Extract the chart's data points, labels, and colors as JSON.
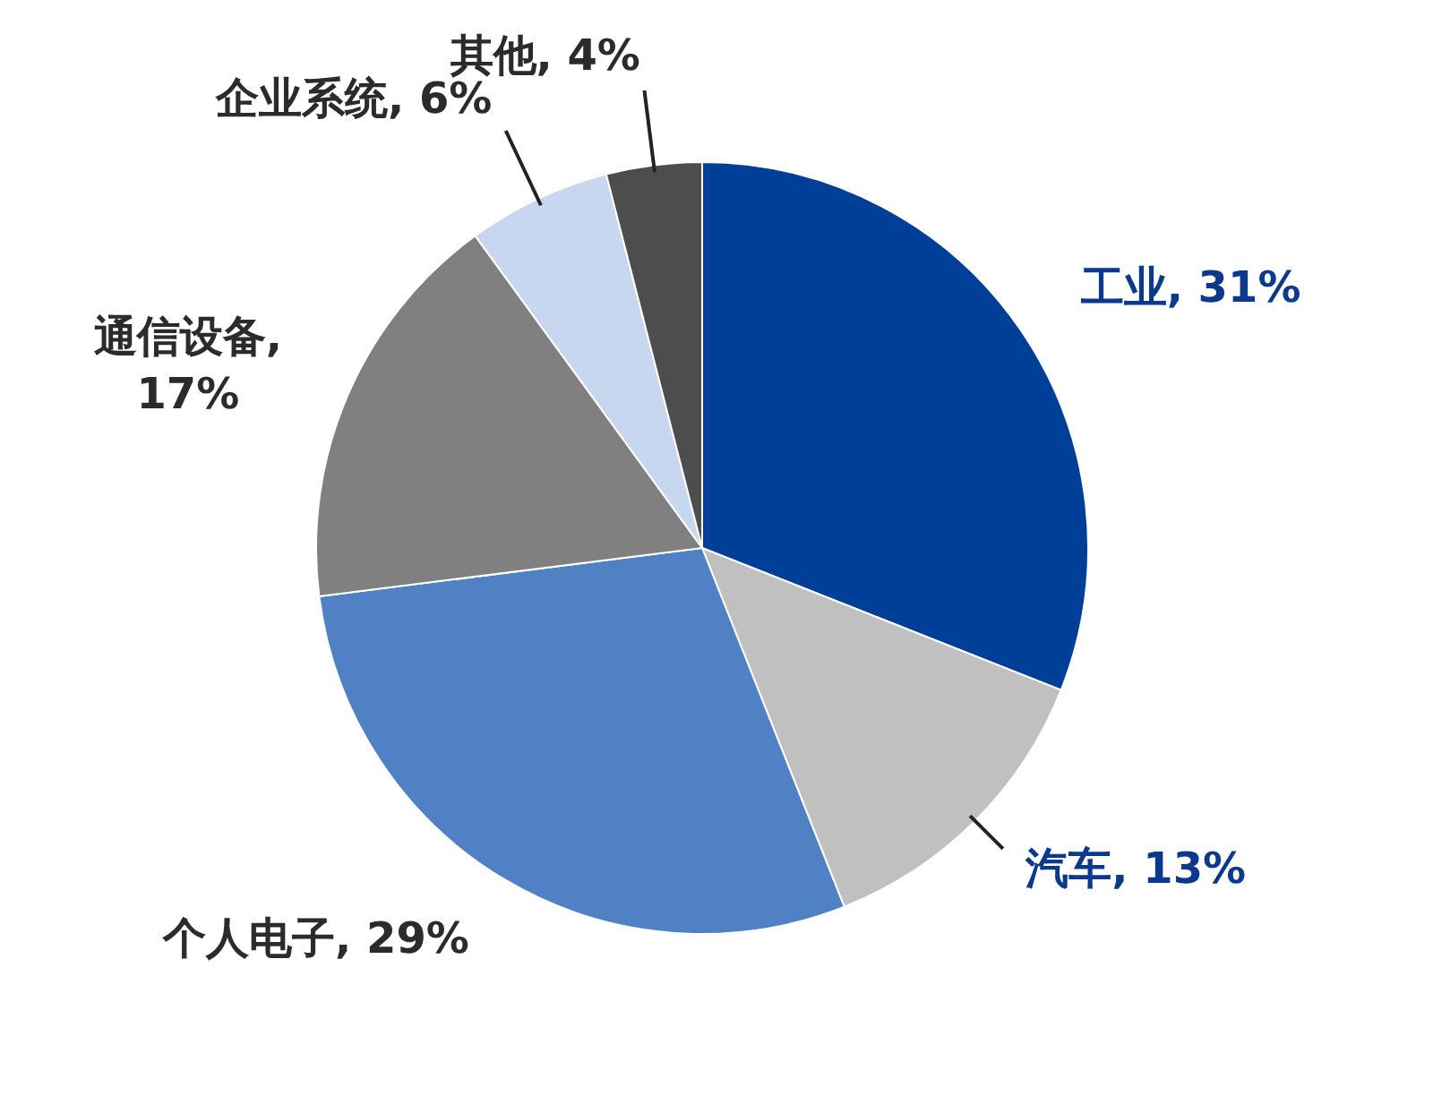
{
  "chart_data": {
    "type": "pie",
    "categories": [
      "工业",
      "汽车",
      "个人电子",
      "通信设备",
      "企业系统",
      "其他"
    ],
    "values": [
      31,
      13,
      29,
      17,
      6,
      4
    ],
    "value_labels": [
      ", 31%",
      ", 13%",
      ", 29%",
      ", 17%",
      ", 6%",
      ", 4%"
    ],
    "colors": [
      "#003f98",
      "#c0c0c0",
      "#4f81c4",
      "#808080",
      "#c6d7ef",
      "#4d4d4d"
    ],
    "legend": false
  }
}
